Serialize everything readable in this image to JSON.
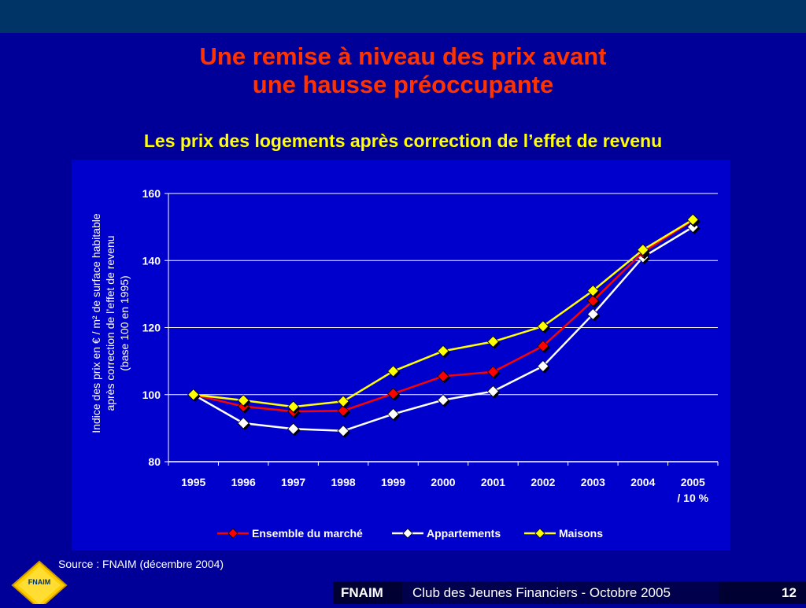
{
  "slide": {
    "title_line1": "Une remise à niveau des prix avant",
    "title_line2": "une hausse préoccupante",
    "subtitle": "Les prix des logements après correction de l’effet de revenu",
    "source": "Source : FNAIM (décembre 2004)",
    "logo_text": "FNAIM",
    "footer": {
      "brand": "FNAIM",
      "event": "Club des Jeunes Financiers - Octobre 2005",
      "page": "12"
    }
  },
  "colors": {
    "background": "#000099",
    "plot_background": "#0000cc",
    "title": "#ff3300",
    "subtitle": "#ffff00",
    "ensemble": "#ff0000",
    "appartements": "#ffffff",
    "maisons": "#ffff00"
  },
  "chart_data": {
    "type": "line",
    "title": "",
    "xlabel": "",
    "ylabel_lines": [
      "Indice des prix en € / m² de surface habitable",
      "après correction de l’effet de revenu",
      "(base 100 en 1995)"
    ],
    "categories": [
      "1995",
      "1996",
      "1997",
      "1998",
      "1999",
      "2000",
      "2001",
      "2002",
      "2003",
      "2004",
      "2005"
    ],
    "category_extra": {
      "2005": "/ 10 %"
    },
    "ylim": [
      80,
      160
    ],
    "yticks": [
      80,
      100,
      120,
      140,
      160
    ],
    "grid": true,
    "legend_position": "bottom",
    "series": [
      {
        "name": "Ensemble du marché",
        "color": "#ff0000",
        "values": [
          100,
          96.5,
          95,
          95.2,
          100.3,
          105.5,
          106.8,
          114.5,
          128,
          142.5,
          152
        ]
      },
      {
        "name": "Appartements",
        "color": "#ffffff",
        "values": [
          100,
          91.5,
          89.8,
          89.2,
          94.2,
          98.4,
          101,
          108.5,
          124,
          141,
          150
        ]
      },
      {
        "name": "Maisons",
        "color": "#ffff00",
        "values": [
          100,
          98.3,
          96.4,
          98,
          107,
          113,
          115.8,
          120.4,
          131,
          143.2,
          152.2
        ]
      }
    ]
  }
}
